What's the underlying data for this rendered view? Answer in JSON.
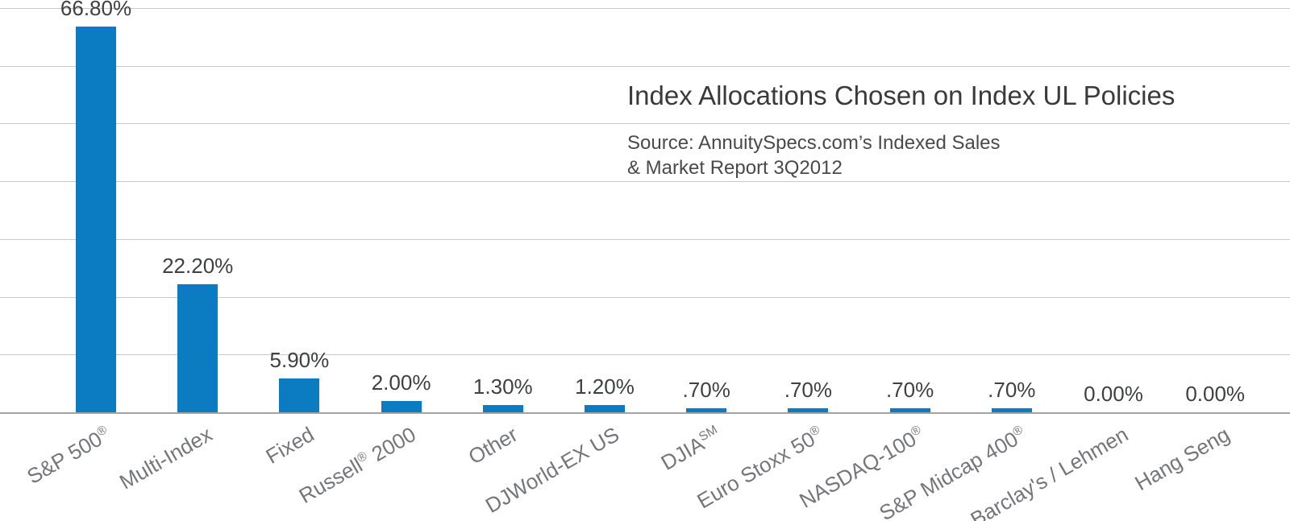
{
  "header": {
    "title": "Index Allocations Chosen on Index UL Policies",
    "source_line1": "Source: AnnuitySpecs.com’s Indexed Sales",
    "source_line2": "& Market Report 3Q2012"
  },
  "chart_data": {
    "type": "bar",
    "title": "Index Allocations Chosen on Index UL Policies",
    "source": "Source: AnnuitySpecs.com’s Indexed Sales & Market Report 3Q2012",
    "categories": [
      "S&P 500®",
      "Multi-Index",
      "Fixed",
      "Russell® 2000",
      "Other",
      "DJWorld-EX US",
      "DJIA℠",
      "Euro Stoxx 50®",
      "NASDAQ-100®",
      "S&P Midcap 400®",
      "Barclay's / Lehmen",
      "Hang Seng"
    ],
    "values": [
      66.8,
      22.2,
      5.9,
      2.0,
      1.3,
      1.2,
      0.7,
      0.7,
      0.7,
      0.7,
      0.0,
      0.0
    ],
    "value_labels": [
      "66.80%",
      "22.20%",
      "5.90%",
      "2.00%",
      "1.30%",
      "1.20%",
      ".70%",
      ".70%",
      ".70%",
      ".70%",
      "0.00%",
      "0.00%"
    ],
    "xlabel": "",
    "ylabel": "",
    "ylim": [
      0,
      70
    ],
    "gridline_interval": 10,
    "grid": "horizontal",
    "legend": "none",
    "bar_color": "#0b7cc2",
    "gridline_color": "#c9c9c9",
    "axis_line_color": "#a3a3a3",
    "label_color": "#3f4040",
    "category_color": "#75767a"
  }
}
